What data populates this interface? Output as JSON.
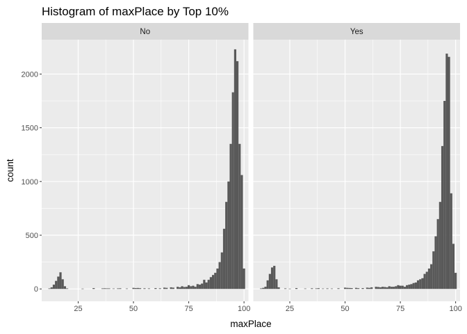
{
  "chart_data": {
    "type": "bar",
    "title": "Histogram of maxPlace by Top 10%",
    "xlabel": "maxPlace",
    "ylabel": "count",
    "xlim": [
      8.5,
      102
    ],
    "ylim": [
      -115,
      2320
    ],
    "x_ticks": [
      25,
      50,
      75,
      100
    ],
    "y_ticks": [
      0,
      500,
      1000,
      1500,
      2000
    ],
    "grid": true,
    "legend": "none",
    "bin_width": 1,
    "bar_color": "#595959",
    "panel_background": "#ebebeb",
    "strip_background": "#d9d9d9",
    "gridline_color": "#ffffff",
    "facets": [
      {
        "label": "No",
        "bins": [
          {
            "x": 12,
            "count": 5
          },
          {
            "x": 13,
            "count": 15
          },
          {
            "x": 14,
            "count": 40
          },
          {
            "x": 15,
            "count": 75
          },
          {
            "x": 16,
            "count": 115
          },
          {
            "x": 17,
            "count": 155
          },
          {
            "x": 18,
            "count": 90
          },
          {
            "x": 19,
            "count": 25
          },
          {
            "x": 20,
            "count": 5
          },
          {
            "x": 27,
            "count": 3
          },
          {
            "x": 32,
            "count": 8
          },
          {
            "x": 36,
            "count": 5
          },
          {
            "x": 37,
            "count": 6
          },
          {
            "x": 38,
            "count": 5
          },
          {
            "x": 39,
            "count": 5
          },
          {
            "x": 41,
            "count": 4
          },
          {
            "x": 43,
            "count": 5
          },
          {
            "x": 44,
            "count": 6
          },
          {
            "x": 47,
            "count": 4
          },
          {
            "x": 50,
            "count": 10
          },
          {
            "x": 51,
            "count": 8
          },
          {
            "x": 52,
            "count": 9
          },
          {
            "x": 53,
            "count": 7
          },
          {
            "x": 55,
            "count": 6
          },
          {
            "x": 57,
            "count": 5
          },
          {
            "x": 60,
            "count": 8
          },
          {
            "x": 62,
            "count": 6
          },
          {
            "x": 64,
            "count": 12
          },
          {
            "x": 65,
            "count": 10
          },
          {
            "x": 67,
            "count": 15
          },
          {
            "x": 68,
            "count": 12
          },
          {
            "x": 70,
            "count": 20
          },
          {
            "x": 71,
            "count": 15
          },
          {
            "x": 72,
            "count": 25
          },
          {
            "x": 73,
            "count": 18
          },
          {
            "x": 74,
            "count": 20
          },
          {
            "x": 75,
            "count": 35
          },
          {
            "x": 76,
            "count": 25
          },
          {
            "x": 77,
            "count": 30
          },
          {
            "x": 78,
            "count": 20
          },
          {
            "x": 79,
            "count": 45
          },
          {
            "x": 80,
            "count": 40
          },
          {
            "x": 81,
            "count": 50
          },
          {
            "x": 82,
            "count": 85
          },
          {
            "x": 83,
            "count": 60
          },
          {
            "x": 84,
            "count": 85
          },
          {
            "x": 85,
            "count": 110
          },
          {
            "x": 86,
            "count": 130
          },
          {
            "x": 87,
            "count": 150
          },
          {
            "x": 88,
            "count": 190
          },
          {
            "x": 89,
            "count": 250
          },
          {
            "x": 90,
            "count": 340
          },
          {
            "x": 91,
            "count": 560
          },
          {
            "x": 92,
            "count": 810
          },
          {
            "x": 93,
            "count": 1000
          },
          {
            "x": 94,
            "count": 1350
          },
          {
            "x": 95,
            "count": 1830
          },
          {
            "x": 96,
            "count": 2230
          },
          {
            "x": 97,
            "count": 2120
          },
          {
            "x": 98,
            "count": 1350
          },
          {
            "x": 99,
            "count": 1060
          },
          {
            "x": 100,
            "count": 190
          }
        ]
      },
      {
        "label": "Yes",
        "bins": [
          {
            "x": 12,
            "count": 5
          },
          {
            "x": 13,
            "count": 10
          },
          {
            "x": 14,
            "count": 20
          },
          {
            "x": 15,
            "count": 80
          },
          {
            "x": 16,
            "count": 140
          },
          {
            "x": 17,
            "count": 200
          },
          {
            "x": 18,
            "count": 215
          },
          {
            "x": 19,
            "count": 90
          },
          {
            "x": 20,
            "count": 15
          },
          {
            "x": 23,
            "count": 5
          },
          {
            "x": 25,
            "count": 3
          },
          {
            "x": 28,
            "count": 8
          },
          {
            "x": 32,
            "count": 4
          },
          {
            "x": 35,
            "count": 6
          },
          {
            "x": 37,
            "count": 5
          },
          {
            "x": 38,
            "count": 7
          },
          {
            "x": 40,
            "count": 4
          },
          {
            "x": 42,
            "count": 5
          },
          {
            "x": 44,
            "count": 4
          },
          {
            "x": 47,
            "count": 6
          },
          {
            "x": 50,
            "count": 12
          },
          {
            "x": 51,
            "count": 10
          },
          {
            "x": 52,
            "count": 9
          },
          {
            "x": 53,
            "count": 8
          },
          {
            "x": 55,
            "count": 10
          },
          {
            "x": 56,
            "count": 7
          },
          {
            "x": 58,
            "count": 8
          },
          {
            "x": 60,
            "count": 12
          },
          {
            "x": 61,
            "count": 10
          },
          {
            "x": 62,
            "count": 15
          },
          {
            "x": 64,
            "count": 20
          },
          {
            "x": 65,
            "count": 18
          },
          {
            "x": 66,
            "count": 15
          },
          {
            "x": 67,
            "count": 20
          },
          {
            "x": 68,
            "count": 18
          },
          {
            "x": 69,
            "count": 15
          },
          {
            "x": 70,
            "count": 25
          },
          {
            "x": 71,
            "count": 20
          },
          {
            "x": 72,
            "count": 20
          },
          {
            "x": 73,
            "count": 25
          },
          {
            "x": 74,
            "count": 35
          },
          {
            "x": 75,
            "count": 30
          },
          {
            "x": 76,
            "count": 30
          },
          {
            "x": 77,
            "count": 20
          },
          {
            "x": 78,
            "count": 35
          },
          {
            "x": 79,
            "count": 40
          },
          {
            "x": 80,
            "count": 45
          },
          {
            "x": 81,
            "count": 55
          },
          {
            "x": 82,
            "count": 60
          },
          {
            "x": 83,
            "count": 80
          },
          {
            "x": 84,
            "count": 90
          },
          {
            "x": 85,
            "count": 100
          },
          {
            "x": 86,
            "count": 140
          },
          {
            "x": 87,
            "count": 160
          },
          {
            "x": 88,
            "count": 190
          },
          {
            "x": 89,
            "count": 230
          },
          {
            "x": 90,
            "count": 350
          },
          {
            "x": 91,
            "count": 490
          },
          {
            "x": 92,
            "count": 650
          },
          {
            "x": 93,
            "count": 810
          },
          {
            "x": 94,
            "count": 1330
          },
          {
            "x": 95,
            "count": 1750
          },
          {
            "x": 96,
            "count": 2190
          },
          {
            "x": 97,
            "count": 2160
          },
          {
            "x": 98,
            "count": 890
          },
          {
            "x": 99,
            "count": 420
          },
          {
            "x": 100,
            "count": 150
          }
        ]
      }
    ]
  }
}
